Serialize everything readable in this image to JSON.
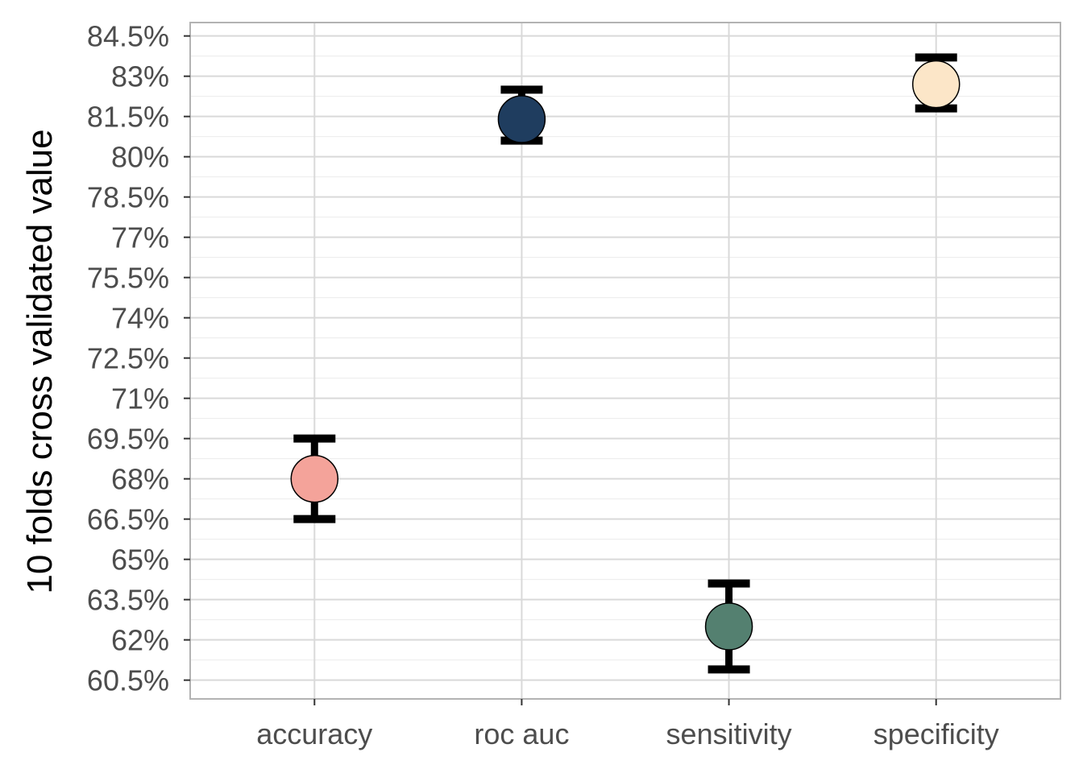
{
  "chart_data": {
    "type": "scatter",
    "title": "",
    "xlabel": "",
    "ylabel": "10 folds cross validated value",
    "categories": [
      "accuracy",
      "roc auc",
      "sensitivity",
      "specificity"
    ],
    "points": [
      {
        "category": "accuracy",
        "y": 68.0,
        "lower": 66.5,
        "upper": 69.5,
        "color": "#F4A39A"
      },
      {
        "category": "roc auc",
        "y": 81.4,
        "lower": 80.6,
        "upper": 82.5,
        "color": "#1F3D5F"
      },
      {
        "category": "sensitivity",
        "y": 62.5,
        "lower": 60.9,
        "upper": 64.1,
        "color": "#548070"
      },
      {
        "category": "specificity",
        "y": 82.7,
        "lower": 81.8,
        "upper": 83.7,
        "color": "#FCE6C8"
      }
    ],
    "y_ticks": [
      "60.5%",
      "62%",
      "63.5%",
      "65%",
      "66.5%",
      "68%",
      "69.5%",
      "71%",
      "72.5%",
      "74%",
      "75.5%",
      "77%",
      "78.5%",
      "80%",
      "81.5%",
      "83%",
      "84.5%"
    ],
    "y_tick_values": [
      60.5,
      62,
      63.5,
      65,
      66.5,
      68,
      69.5,
      71,
      72.5,
      74,
      75.5,
      77,
      78.5,
      80,
      81.5,
      83,
      84.5
    ],
    "ylim": [
      59.8,
      85.0
    ],
    "grid": true,
    "legend": "none"
  }
}
